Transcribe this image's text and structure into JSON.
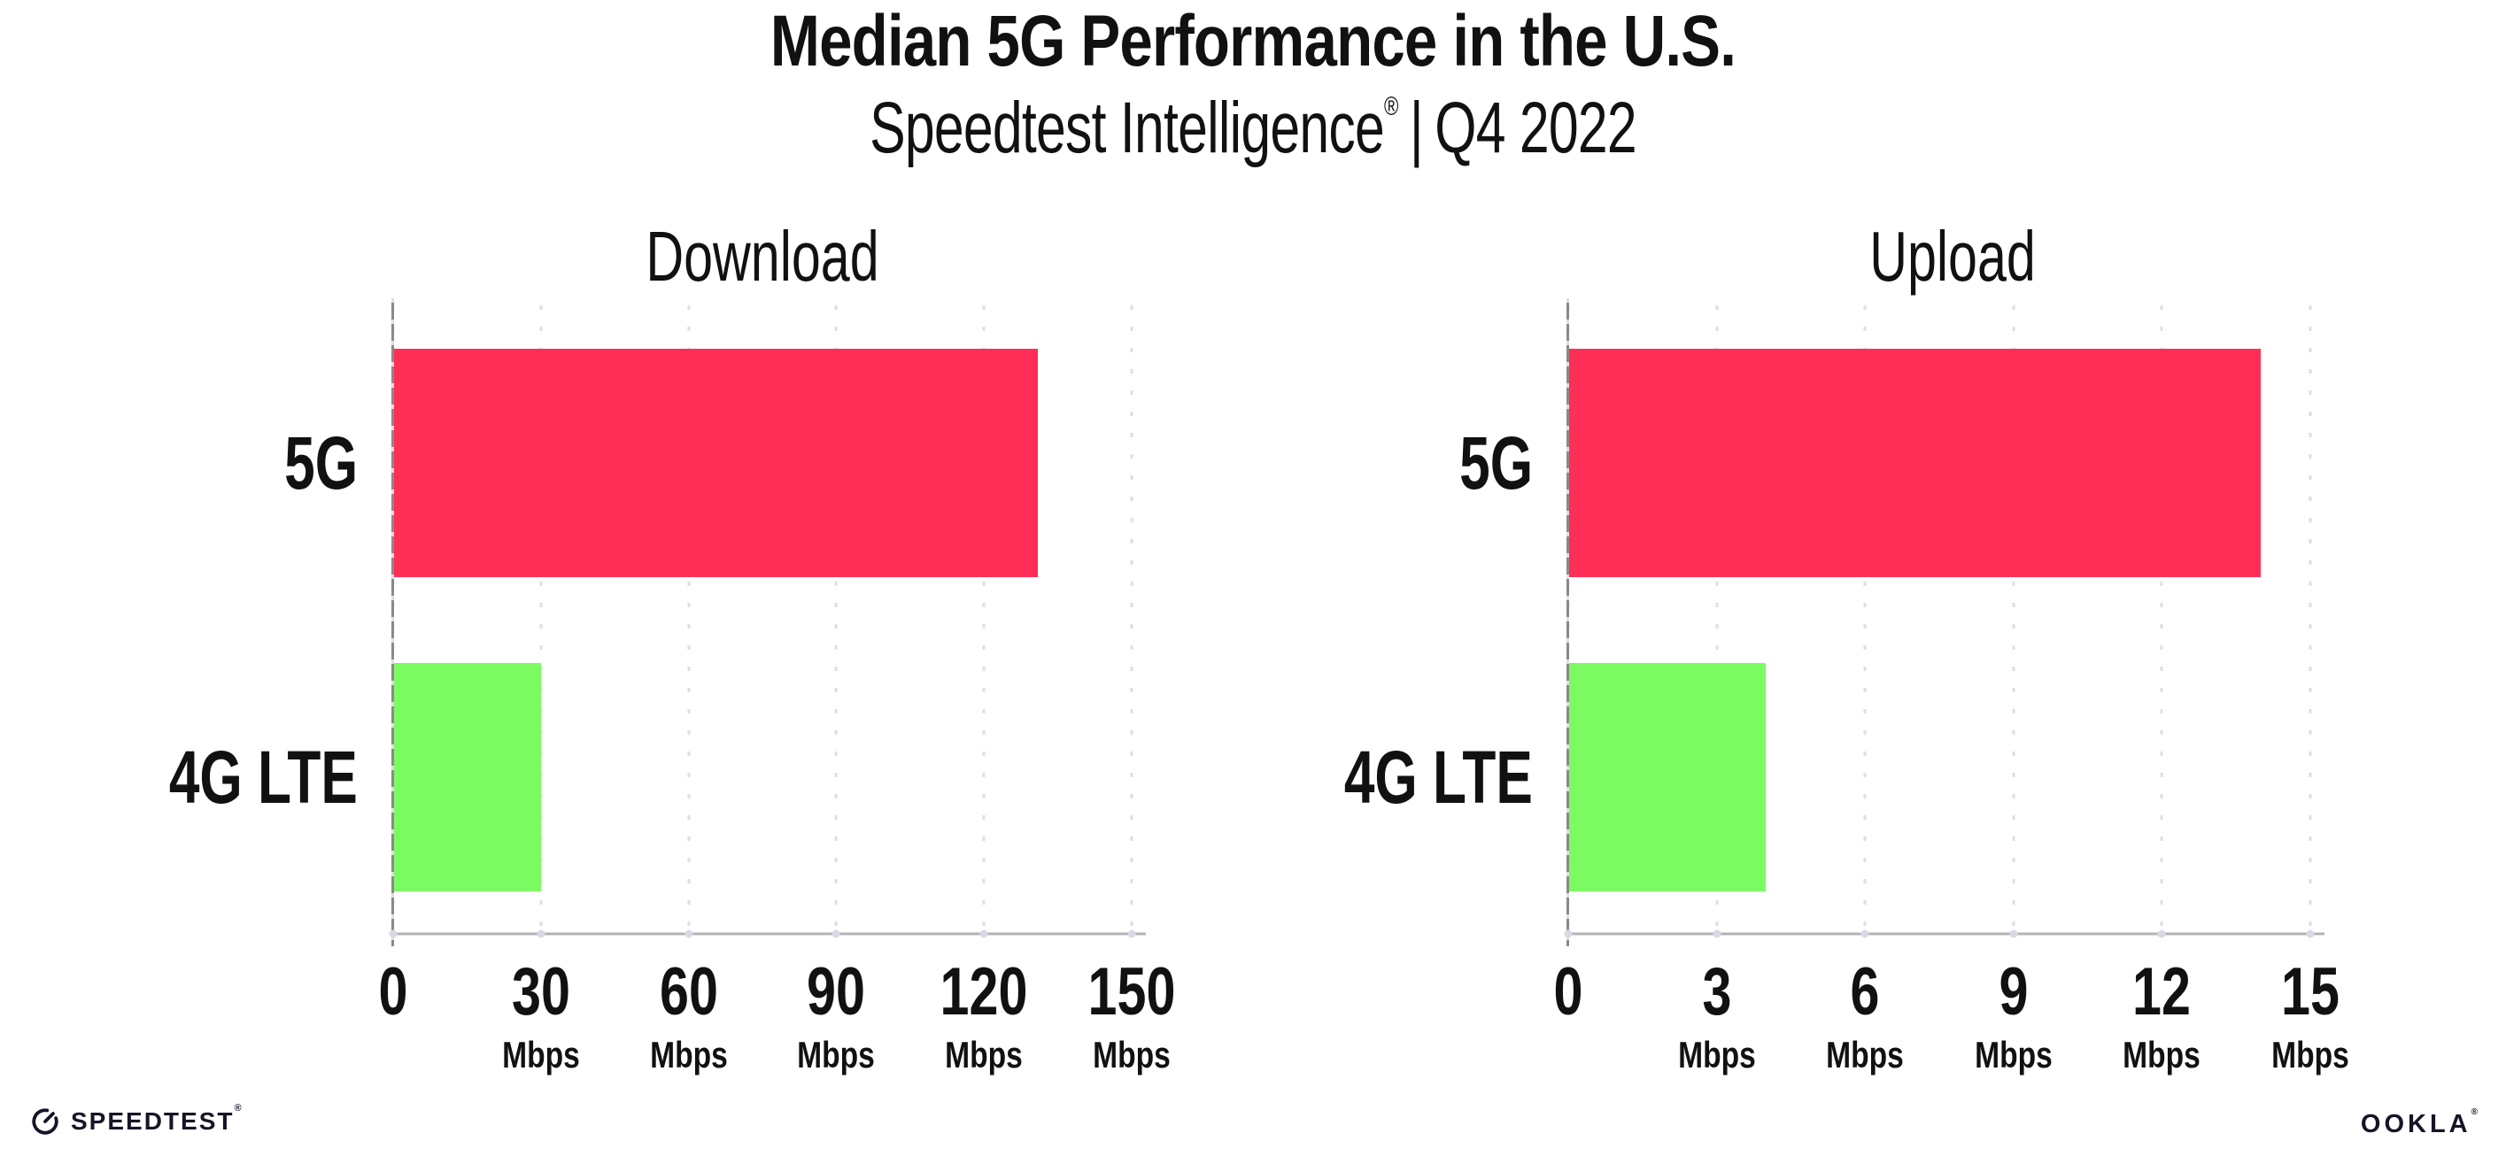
{
  "header": {
    "title": "Median 5G Performance in the U.S.",
    "subtitle": {
      "brand": "Speedtest Intelligence",
      "registered_mark": "®",
      "separator": "|",
      "period": "Q4 2022"
    }
  },
  "chart_data": [
    {
      "type": "bar",
      "orientation": "horizontal",
      "title": "Download",
      "categories": [
        "5G",
        "4G LTE"
      ],
      "values": [
        131,
        30
      ],
      "unit": "Mbps",
      "xlim": [
        0,
        150
      ],
      "xticks": [
        0,
        30,
        60,
        90,
        120,
        150
      ],
      "bar_colors": [
        "#FF2E56",
        "#7CFA62"
      ],
      "grid": "vertical-dotted",
      "legend": "none"
    },
    {
      "type": "bar",
      "orientation": "horizontal",
      "title": "Upload",
      "categories": [
        "5G",
        "4G LTE"
      ],
      "values": [
        14,
        4
      ],
      "unit": "Mbps",
      "xlim": [
        0,
        15
      ],
      "xticks": [
        0,
        3,
        6,
        9,
        12,
        15
      ],
      "bar_colors": [
        "#FF2E56",
        "#7CFA62"
      ],
      "grid": "vertical-dotted",
      "legend": "none"
    }
  ],
  "footer": {
    "speedtest_wordmark": "SPEEDTEST",
    "speedtest_mark": "®",
    "ookla_wordmark": "OOKLA",
    "ookla_mark": "®"
  },
  "colors": {
    "bar_5g": "#FF2E56",
    "bar_4g_lte": "#7CFA62",
    "y_axis": "#8A8A8A",
    "x_axis": "#B3B3B3",
    "gridline_dots": "#DEDEE8",
    "text": "#111111",
    "background": "#FFFFFF"
  }
}
